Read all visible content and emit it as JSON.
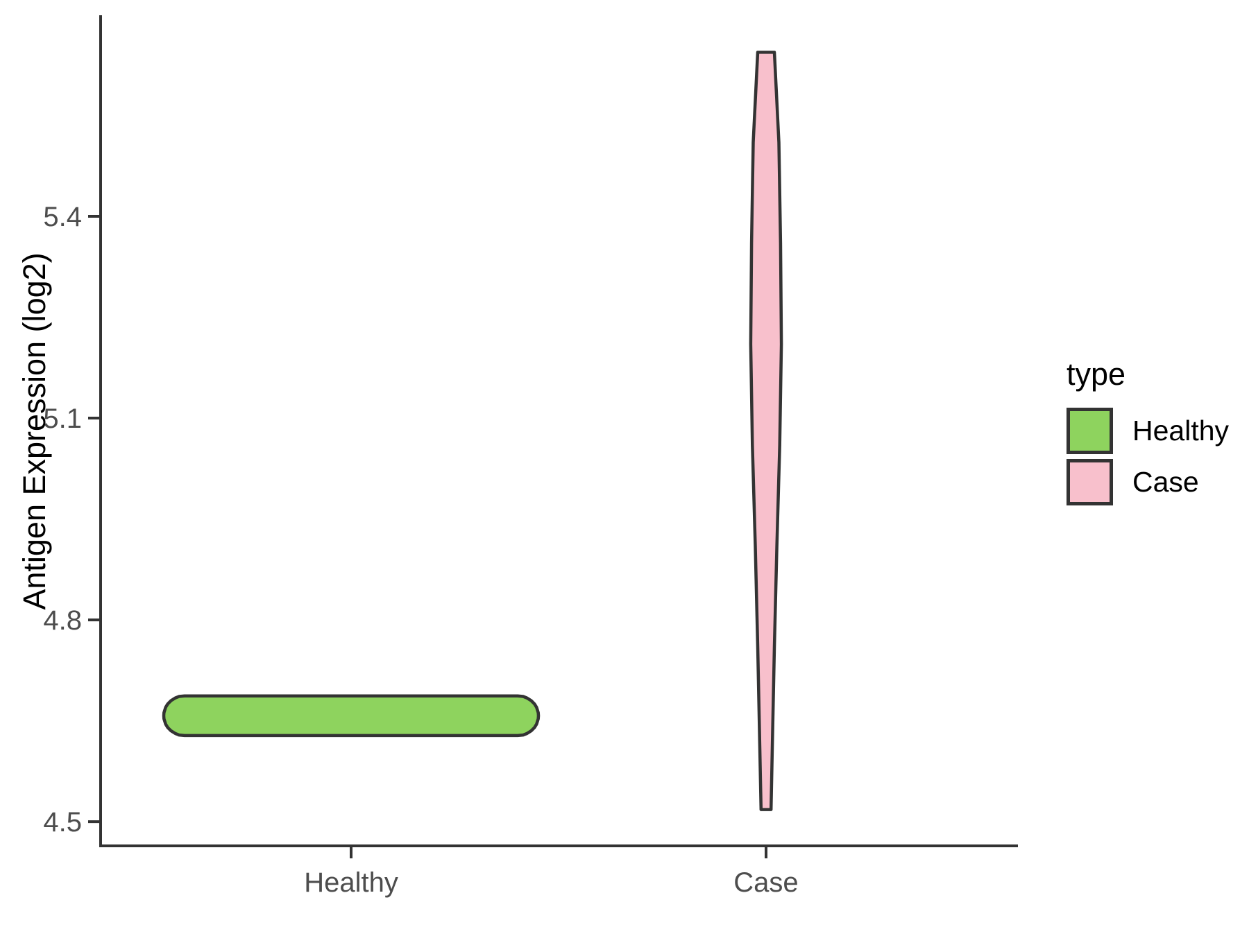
{
  "chart_data": {
    "type": "violin",
    "title": "",
    "xlabel": "",
    "ylabel": "Antigen Expression (log2)",
    "categories": [
      "Healthy",
      "Case"
    ],
    "ylim": [
      4.464,
      5.699
    ],
    "yticks": [
      {
        "value": 4.5,
        "label": "4.5"
      },
      {
        "value": 4.8,
        "label": "4.8"
      },
      {
        "value": 5.1,
        "label": "5.1"
      },
      {
        "value": 5.4,
        "label": "5.4"
      }
    ],
    "grid": false,
    "axis_color": "#333333",
    "tick_label_color": "#4d4d4d",
    "stroke_color": "#333333",
    "legend": {
      "title": "type",
      "position": "right",
      "entries": [
        {
          "label": "Healthy",
          "color": "#8ed35e"
        },
        {
          "label": "Case",
          "color": "#f8c0cc"
        }
      ]
    },
    "series": [
      {
        "name": "Healthy",
        "fill": "#8ed35e",
        "min": 4.63,
        "max": 4.69,
        "profile": [
          [
            4.687,
            0.4015
          ],
          [
            4.6862,
            0.4145
          ],
          [
            4.684,
            0.4235
          ],
          [
            4.68,
            0.434
          ],
          [
            4.675,
            0.442
          ],
          [
            4.67,
            0.447
          ],
          [
            4.662,
            0.451
          ],
          [
            4.6575,
            0.4515
          ],
          [
            4.653,
            0.451
          ],
          [
            4.645,
            0.447
          ],
          [
            4.64,
            0.442
          ],
          [
            4.635,
            0.434
          ],
          [
            4.631,
            0.4235
          ],
          [
            4.6288,
            0.4145
          ],
          [
            4.628,
            0.4015
          ]
        ]
      },
      {
        "name": "Case",
        "fill": "#f8c0cc",
        "min": 4.52,
        "max": 5.64,
        "profile": [
          [
            5.644,
            0.02
          ],
          [
            5.51,
            0.031
          ],
          [
            5.36,
            0.035
          ],
          [
            5.21,
            0.037
          ],
          [
            5.06,
            0.033
          ],
          [
            4.91,
            0.026
          ],
          [
            4.76,
            0.02
          ],
          [
            4.61,
            0.015
          ],
          [
            4.518,
            0.012
          ]
        ]
      }
    ]
  }
}
